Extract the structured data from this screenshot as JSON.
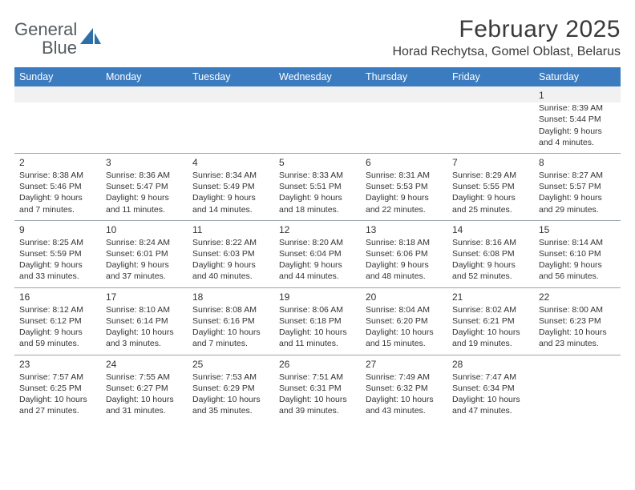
{
  "logo": {
    "word1": "General",
    "word2": "Blue"
  },
  "title": "February 2025",
  "location": "Horad Rechytsa, Gomel Oblast, Belarus",
  "colors": {
    "header_bg": "#3b7bbf",
    "header_text": "#ffffff",
    "divider": "#9aa4ae",
    "blank_bg": "#f1f1f1",
    "text": "#333333",
    "logo_gray": "#555b5f",
    "logo_blue": "#2f6fa8"
  },
  "dow": [
    "Sunday",
    "Monday",
    "Tuesday",
    "Wednesday",
    "Thursday",
    "Friday",
    "Saturday"
  ],
  "weeks": [
    [
      null,
      null,
      null,
      null,
      null,
      null,
      {
        "n": "1",
        "sr": "8:39 AM",
        "ss": "5:44 PM",
        "dl": "9 hours and 4 minutes."
      }
    ],
    [
      {
        "n": "2",
        "sr": "8:38 AM",
        "ss": "5:46 PM",
        "dl": "9 hours and 7 minutes."
      },
      {
        "n": "3",
        "sr": "8:36 AM",
        "ss": "5:47 PM",
        "dl": "9 hours and 11 minutes."
      },
      {
        "n": "4",
        "sr": "8:34 AM",
        "ss": "5:49 PM",
        "dl": "9 hours and 14 minutes."
      },
      {
        "n": "5",
        "sr": "8:33 AM",
        "ss": "5:51 PM",
        "dl": "9 hours and 18 minutes."
      },
      {
        "n": "6",
        "sr": "8:31 AM",
        "ss": "5:53 PM",
        "dl": "9 hours and 22 minutes."
      },
      {
        "n": "7",
        "sr": "8:29 AM",
        "ss": "5:55 PM",
        "dl": "9 hours and 25 minutes."
      },
      {
        "n": "8",
        "sr": "8:27 AM",
        "ss": "5:57 PM",
        "dl": "9 hours and 29 minutes."
      }
    ],
    [
      {
        "n": "9",
        "sr": "8:25 AM",
        "ss": "5:59 PM",
        "dl": "9 hours and 33 minutes."
      },
      {
        "n": "10",
        "sr": "8:24 AM",
        "ss": "6:01 PM",
        "dl": "9 hours and 37 minutes."
      },
      {
        "n": "11",
        "sr": "8:22 AM",
        "ss": "6:03 PM",
        "dl": "9 hours and 40 minutes."
      },
      {
        "n": "12",
        "sr": "8:20 AM",
        "ss": "6:04 PM",
        "dl": "9 hours and 44 minutes."
      },
      {
        "n": "13",
        "sr": "8:18 AM",
        "ss": "6:06 PM",
        "dl": "9 hours and 48 minutes."
      },
      {
        "n": "14",
        "sr": "8:16 AM",
        "ss": "6:08 PM",
        "dl": "9 hours and 52 minutes."
      },
      {
        "n": "15",
        "sr": "8:14 AM",
        "ss": "6:10 PM",
        "dl": "9 hours and 56 minutes."
      }
    ],
    [
      {
        "n": "16",
        "sr": "8:12 AM",
        "ss": "6:12 PM",
        "dl": "9 hours and 59 minutes."
      },
      {
        "n": "17",
        "sr": "8:10 AM",
        "ss": "6:14 PM",
        "dl": "10 hours and 3 minutes."
      },
      {
        "n": "18",
        "sr": "8:08 AM",
        "ss": "6:16 PM",
        "dl": "10 hours and 7 minutes."
      },
      {
        "n": "19",
        "sr": "8:06 AM",
        "ss": "6:18 PM",
        "dl": "10 hours and 11 minutes."
      },
      {
        "n": "20",
        "sr": "8:04 AM",
        "ss": "6:20 PM",
        "dl": "10 hours and 15 minutes."
      },
      {
        "n": "21",
        "sr": "8:02 AM",
        "ss": "6:21 PM",
        "dl": "10 hours and 19 minutes."
      },
      {
        "n": "22",
        "sr": "8:00 AM",
        "ss": "6:23 PM",
        "dl": "10 hours and 23 minutes."
      }
    ],
    [
      {
        "n": "23",
        "sr": "7:57 AM",
        "ss": "6:25 PM",
        "dl": "10 hours and 27 minutes."
      },
      {
        "n": "24",
        "sr": "7:55 AM",
        "ss": "6:27 PM",
        "dl": "10 hours and 31 minutes."
      },
      {
        "n": "25",
        "sr": "7:53 AM",
        "ss": "6:29 PM",
        "dl": "10 hours and 35 minutes."
      },
      {
        "n": "26",
        "sr": "7:51 AM",
        "ss": "6:31 PM",
        "dl": "10 hours and 39 minutes."
      },
      {
        "n": "27",
        "sr": "7:49 AM",
        "ss": "6:32 PM",
        "dl": "10 hours and 43 minutes."
      },
      {
        "n": "28",
        "sr": "7:47 AM",
        "ss": "6:34 PM",
        "dl": "10 hours and 47 minutes."
      },
      null
    ]
  ],
  "labels": {
    "sunrise": "Sunrise:",
    "sunset": "Sunset:",
    "daylight": "Daylight:"
  }
}
